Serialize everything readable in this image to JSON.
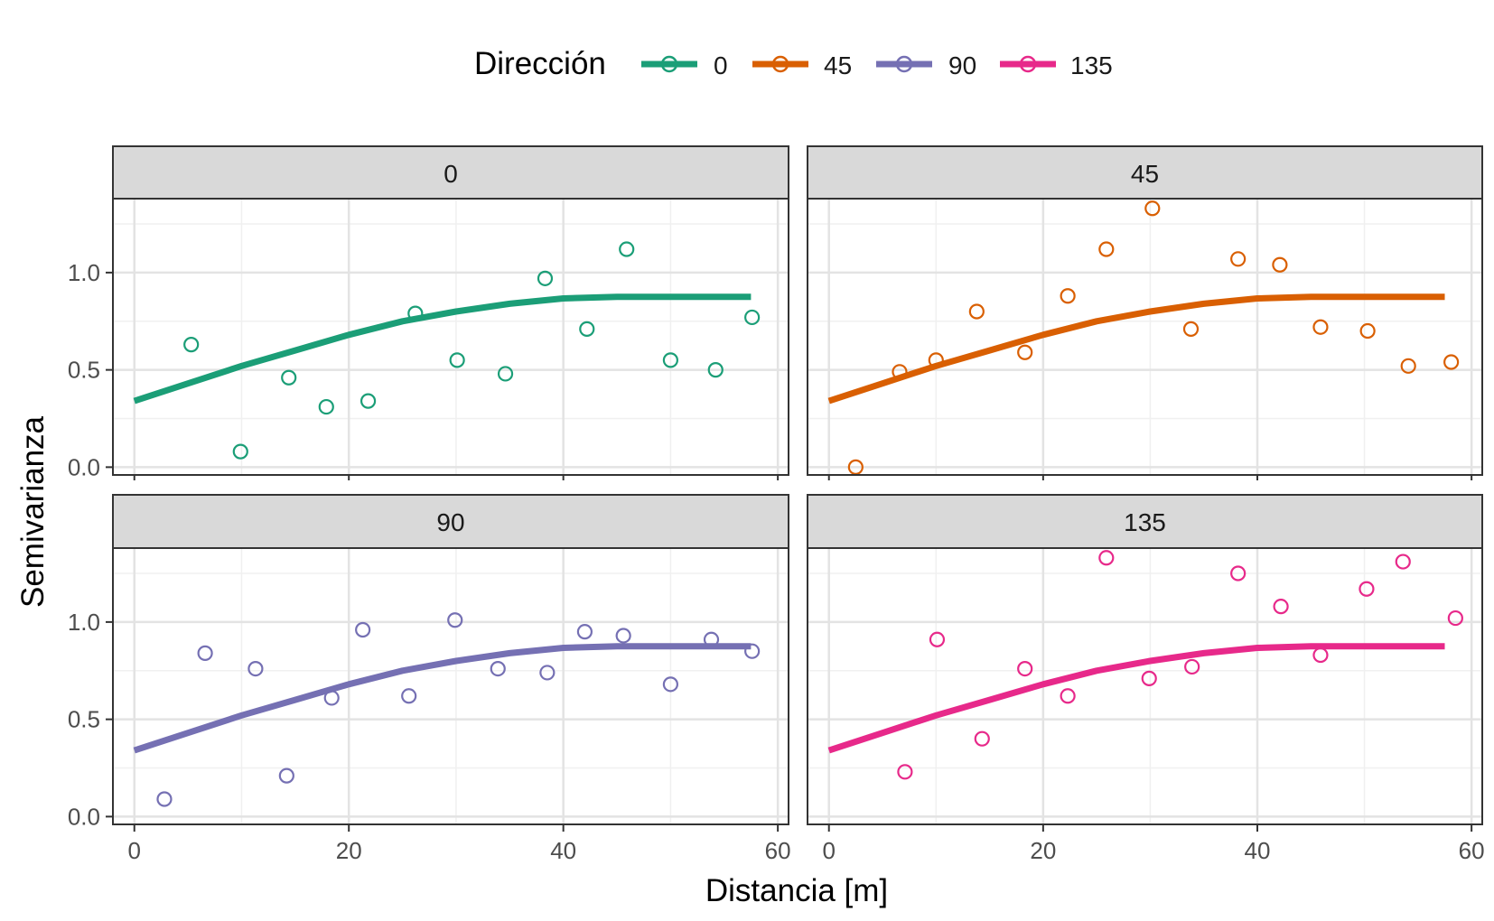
{
  "legend": {
    "title": "Dirección",
    "position": "top",
    "items": [
      {
        "label": "0",
        "color": "#1B9E77"
      },
      {
        "label": "45",
        "color": "#D95F02"
      },
      {
        "label": "90",
        "color": "#7570B3"
      },
      {
        "label": "135",
        "color": "#E7298A"
      }
    ]
  },
  "chart_data": {
    "type": "scatter",
    "facets": true,
    "xlabel": "Distancia [m]",
    "ylabel": "Semivarianza",
    "xlim": [
      -2,
      61
    ],
    "ylim": [
      -0.04,
      1.38
    ],
    "x_ticks": [
      0,
      20,
      40,
      60
    ],
    "x_tick_labels": [
      "0",
      "20",
      "40",
      "60"
    ],
    "y_ticks": [
      0.0,
      0.5,
      1.0
    ],
    "y_tick_labels": [
      "0.0",
      "0.5",
      "1.0"
    ],
    "grid": true,
    "fitted_model": {
      "x": [
        0,
        5,
        10,
        15,
        20,
        25,
        30,
        35,
        40,
        45,
        50,
        57.5
      ],
      "y": [
        0.34,
        0.43,
        0.52,
        0.6,
        0.68,
        0.75,
        0.8,
        0.84,
        0.867,
        0.875,
        0.875,
        0.875
      ]
    },
    "panels": [
      {
        "strip": "0",
        "color": "#1B9E77",
        "points": {
          "x": [
            5.3,
            9.9,
            14.4,
            17.9,
            21.8,
            26.2,
            30.1,
            34.6,
            38.3,
            42.2,
            45.9,
            50.0,
            54.2,
            57.6
          ],
          "y": [
            0.63,
            0.08,
            0.46,
            0.31,
            0.34,
            0.79,
            0.55,
            0.48,
            0.97,
            0.71,
            1.12,
            0.55,
            0.5,
            0.77
          ]
        }
      },
      {
        "strip": "45",
        "color": "#D95F02",
        "points": {
          "x": [
            2.5,
            6.6,
            10.0,
            13.8,
            18.3,
            22.3,
            25.9,
            30.2,
            33.8,
            38.2,
            42.1,
            45.9,
            50.3,
            54.1,
            58.1
          ],
          "y": [
            0.0,
            0.49,
            0.55,
            0.8,
            0.59,
            0.88,
            1.12,
            1.33,
            0.71,
            1.07,
            1.04,
            0.72,
            0.7,
            0.52,
            0.54
          ]
        }
      },
      {
        "strip": "90",
        "color": "#7570B3",
        "points": {
          "x": [
            2.8,
            6.6,
            11.3,
            14.2,
            18.4,
            21.3,
            25.6,
            29.9,
            33.9,
            38.5,
            42.0,
            45.6,
            50.0,
            53.8,
            57.6
          ],
          "y": [
            0.09,
            0.84,
            0.76,
            0.21,
            0.61,
            0.96,
            0.62,
            1.01,
            0.76,
            0.74,
            0.95,
            0.93,
            0.68,
            0.91,
            0.85
          ]
        }
      },
      {
        "strip": "135",
        "color": "#E7298A",
        "points": {
          "x": [
            7.1,
            10.1,
            14.3,
            18.3,
            22.3,
            25.9,
            29.9,
            33.9,
            38.2,
            42.2,
            45.9,
            50.2,
            53.6,
            58.5
          ],
          "y": [
            0.23,
            0.91,
            0.4,
            0.76,
            0.62,
            1.33,
            0.71,
            0.77,
            1.25,
            1.08,
            0.83,
            1.17,
            1.31,
            1.02
          ]
        }
      }
    ]
  }
}
